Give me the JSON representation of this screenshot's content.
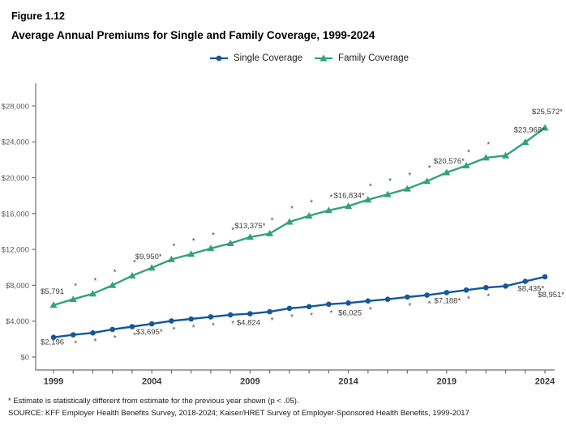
{
  "header": {
    "figure_label": "Figure 1.12",
    "title": "Average Annual Premiums for Single and Family Coverage, 1999-2024"
  },
  "legend": {
    "items": [
      {
        "label": "Single Coverage",
        "color": "#15579B",
        "marker": "circle"
      },
      {
        "label": "Family Coverage",
        "color": "#33A17E",
        "marker": "triangle"
      }
    ]
  },
  "footnotes": [
    "* Estimate is statistically different from estimate for the previous year shown (p < .05).",
    "SOURCE: KFF Employer Health Benefits Survey, 2018-2024; Kaiser/HRET Survey of Employer-Sponsored Health Benefits, 1999-2017"
  ],
  "chart_data": {
    "type": "line",
    "title": "Average Annual Premiums for Single and Family Coverage, 1999-2024",
    "xlabel": "",
    "ylabel": "",
    "ylim": [
      0,
      29500
    ],
    "grid": false,
    "legend_position": "top-center",
    "x": [
      1999,
      2000,
      2001,
      2002,
      2003,
      2004,
      2005,
      2006,
      2007,
      2008,
      2009,
      2010,
      2011,
      2012,
      2013,
      2014,
      2015,
      2016,
      2017,
      2018,
      2019,
      2020,
      2021,
      2022,
      2023,
      2024
    ],
    "x_tick_labels": [
      "1999",
      "2004",
      "2009",
      "2014",
      "2019",
      "2024"
    ],
    "y_tick_values": [
      0,
      4000,
      8000,
      12000,
      16000,
      20000,
      24000,
      28000
    ],
    "y_tick_labels": [
      "$0",
      "$4,000",
      "$8,000",
      "$12,000",
      "$16,000",
      "$20,000",
      "$24,000",
      "$28,000"
    ],
    "series": [
      {
        "name": "Single Coverage",
        "color": "#15579B",
        "marker": "circle",
        "label_side": "below",
        "values": [
          2196,
          2471,
          2689,
          3083,
          3383,
          3695,
          4024,
          4242,
          4479,
          4704,
          4824,
          5049,
          5429,
          5615,
          5884,
          6025,
          6251,
          6435,
          6690,
          6896,
          7188,
          7470,
          7739,
          7911,
          8435,
          8951
        ],
        "significant_years": [
          2000,
          2001,
          2002,
          2003,
          2004,
          2005,
          2006,
          2007,
          2008,
          2010,
          2011,
          2012,
          2013,
          2015,
          2017,
          2018,
          2019,
          2020,
          2021,
          2023,
          2024
        ],
        "labels": [
          {
            "year": 1999,
            "text": "$2,196",
            "anchor": "start",
            "dx": -16,
            "dy": 9
          },
          {
            "year": 2004,
            "text": "$3,695*",
            "anchor": "middle",
            "dx": -3,
            "dy": 13
          },
          {
            "year": 2009,
            "text": "$4,824",
            "anchor": "middle",
            "dx": -2,
            "dy": 14
          },
          {
            "year": 2014,
            "text": "$6,025",
            "anchor": "middle",
            "dx": 2,
            "dy": 15
          },
          {
            "year": 2019,
            "text": "$7,188*",
            "anchor": "middle",
            "dx": 1,
            "dy": 13
          },
          {
            "year": 2023,
            "text": "$8,435*",
            "anchor": "middle",
            "dx": 7,
            "dy": 12
          },
          {
            "year": 2024,
            "text": "$8,951*",
            "anchor": "end",
            "dx": 24,
            "dy": 25
          }
        ]
      },
      {
        "name": "Family Coverage",
        "color": "#33A17E",
        "marker": "triangle",
        "label_side": "above",
        "values": [
          5791,
          6438,
          7061,
          8003,
          9068,
          9950,
          10880,
          11480,
          12106,
          12680,
          13375,
          13770,
          15073,
          15745,
          16351,
          16834,
          17545,
          18142,
          18764,
          19616,
          20576,
          21342,
          22221,
          22463,
          23968,
          25572
        ],
        "significant_years": [
          2000,
          2001,
          2002,
          2003,
          2004,
          2005,
          2006,
          2007,
          2008,
          2009,
          2010,
          2011,
          2012,
          2013,
          2014,
          2015,
          2016,
          2017,
          2018,
          2019,
          2020,
          2021,
          2023,
          2024
        ],
        "labels": [
          {
            "year": 1999,
            "text": "$5,791",
            "anchor": "start",
            "dx": -16,
            "dy": -14
          },
          {
            "year": 2004,
            "text": "$9,950*",
            "anchor": "middle",
            "dx": -4,
            "dy": -11
          },
          {
            "year": 2009,
            "text": "$13,375*",
            "anchor": "middle",
            "dx": 0,
            "dy": -11
          },
          {
            "year": 2014,
            "text": "$16,834*",
            "anchor": "middle",
            "dx": 1,
            "dy": -10
          },
          {
            "year": 2019,
            "text": "$20,576*",
            "anchor": "middle",
            "dx": 3,
            "dy": -11
          },
          {
            "year": 2023,
            "text": "$23,968*",
            "anchor": "middle",
            "dx": 5,
            "dy": -12
          },
          {
            "year": 2024,
            "text": "$25,572*",
            "anchor": "end",
            "dx": 22,
            "dy": -17
          }
        ]
      }
    ]
  }
}
